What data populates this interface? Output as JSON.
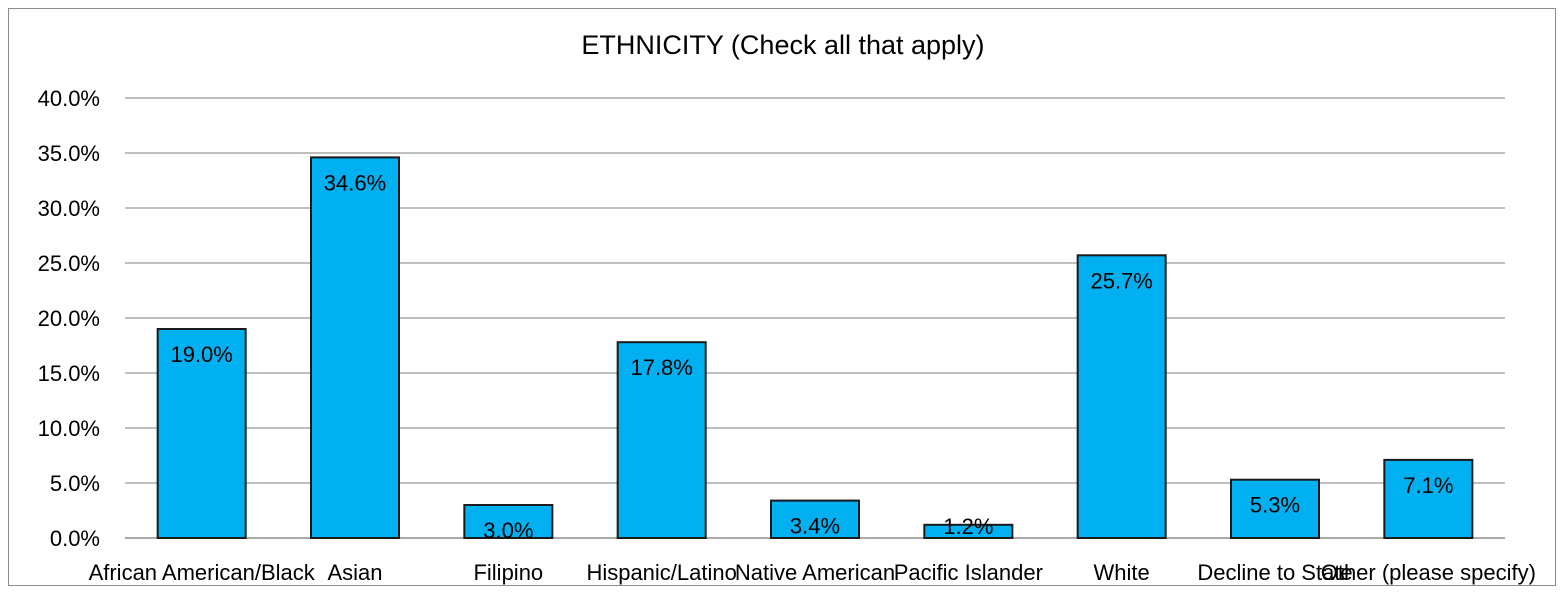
{
  "chart_data": {
    "type": "bar",
    "title": "ETHNICITY (Check all that apply)",
    "categories": [
      "African American/Black",
      "Asian",
      "Filipino",
      "Hispanic/Latino",
      "Native American",
      "Pacific Islander",
      "White",
      "Decline to State",
      "Other (please specify)"
    ],
    "values": [
      19.0,
      34.6,
      3.0,
      17.8,
      3.4,
      1.2,
      25.7,
      5.3,
      7.1
    ],
    "data_labels": [
      "19.0%",
      "34.6%",
      "3.0%",
      "17.8%",
      "3.4%",
      "1.2%",
      "25.7%",
      "5.3%",
      "7.1%"
    ],
    "ylim": [
      0,
      40
    ],
    "yticks": [
      "0.0%",
      "5.0%",
      "10.0%",
      "15.0%",
      "20.0%",
      "25.0%",
      "30.0%",
      "35.0%",
      "40.0%"
    ],
    "grid": true,
    "legend": "none",
    "bar_color": "#00b0f0",
    "bar_edge_color": "#1a1a1a"
  }
}
